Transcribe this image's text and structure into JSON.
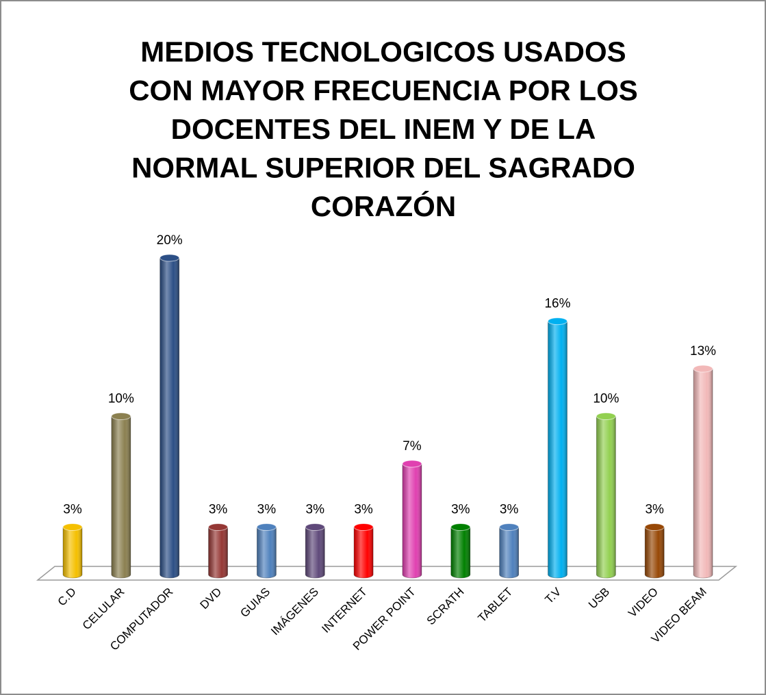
{
  "chart_data": {
    "type": "bar3d",
    "title": [
      "MEDIOS TECNOLOGICOS  USADOS",
      "CON MAYOR FRECUENCIA POR LOS",
      "DOCENTES DEL INEM Y DE LA",
      "NORMAL SUPERIOR DEL SAGRADO",
      "CORAZÓN"
    ],
    "categories": [
      "C.D",
      "CELULAR",
      "COMPUTADOR",
      "DVD",
      "GUIAS",
      "IMÁGENES",
      "INTERNET",
      "POWER POINT",
      "SCRATH",
      "TABLET",
      "T.V",
      "USB",
      "VIDEO",
      "VIDEO BEAM"
    ],
    "values": [
      3,
      10,
      20,
      3,
      3,
      3,
      3,
      7,
      3,
      3,
      16,
      10,
      3,
      13
    ],
    "value_labels": [
      "3%",
      "10%",
      "20%",
      "3%",
      "3%",
      "3%",
      "3%",
      "7%",
      "3%",
      "3%",
      "16%",
      "10%",
      "3%",
      "13%"
    ],
    "colors": [
      "#f5c000",
      "#8b8050",
      "#2c4f86",
      "#953734",
      "#4f81bd",
      "#5f497a",
      "#ff0000",
      "#e040b0",
      "#008000",
      "#4f81bd",
      "#00b0f0",
      "#92d050",
      "#974806",
      "#f2b8b8"
    ]
  }
}
